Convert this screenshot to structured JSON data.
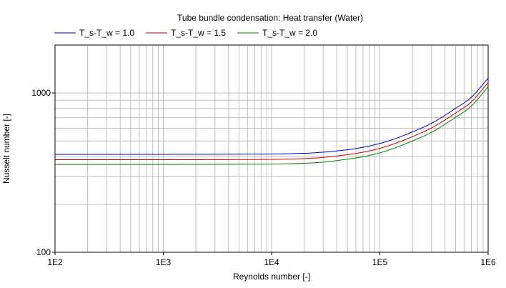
{
  "chart_data": {
    "type": "line",
    "title": "Tube bundle condensation: Heat transfer (Water)",
    "xlabel": "Reynolds number [-]",
    "ylabel": "Nusselt number [-]",
    "xscale": "log",
    "yscale": "log",
    "xlim": [
      100,
      1000000
    ],
    "ylim": [
      100,
      2000
    ],
    "grid": true,
    "legend_position": "top-left",
    "x_tick_labels": [
      "1E2",
      "1E3",
      "1E4",
      "1E5",
      "1E6"
    ],
    "y_tick_labels": [
      "100",
      "1000"
    ],
    "x": [
      100,
      1000,
      5000,
      10000,
      20000,
      30000,
      50000,
      70000,
      100000,
      150000,
      200000,
      300000,
      500000,
      700000,
      1000000
    ],
    "series": [
      {
        "name": "T_s-T_w = 1.0",
        "color": "#0000b4",
        "values": [
          412,
          412,
          413,
          414,
          418,
          425,
          440,
          456,
          482,
          527,
          570,
          645,
          800,
          940,
          1240
        ]
      },
      {
        "name": "T_s-T_w = 1.5",
        "color": "#c80000",
        "values": [
          381,
          381,
          382,
          383,
          387,
          394,
          410,
          425,
          449,
          492,
          532,
          603,
          748,
          880,
          1165
        ]
      },
      {
        "name": "T_s-T_w = 2.0",
        "color": "#008000",
        "values": [
          356,
          356,
          357,
          358,
          362,
          368,
          384,
          398,
          421,
          462,
          500,
          566,
          703,
          828,
          1095
        ]
      }
    ]
  }
}
